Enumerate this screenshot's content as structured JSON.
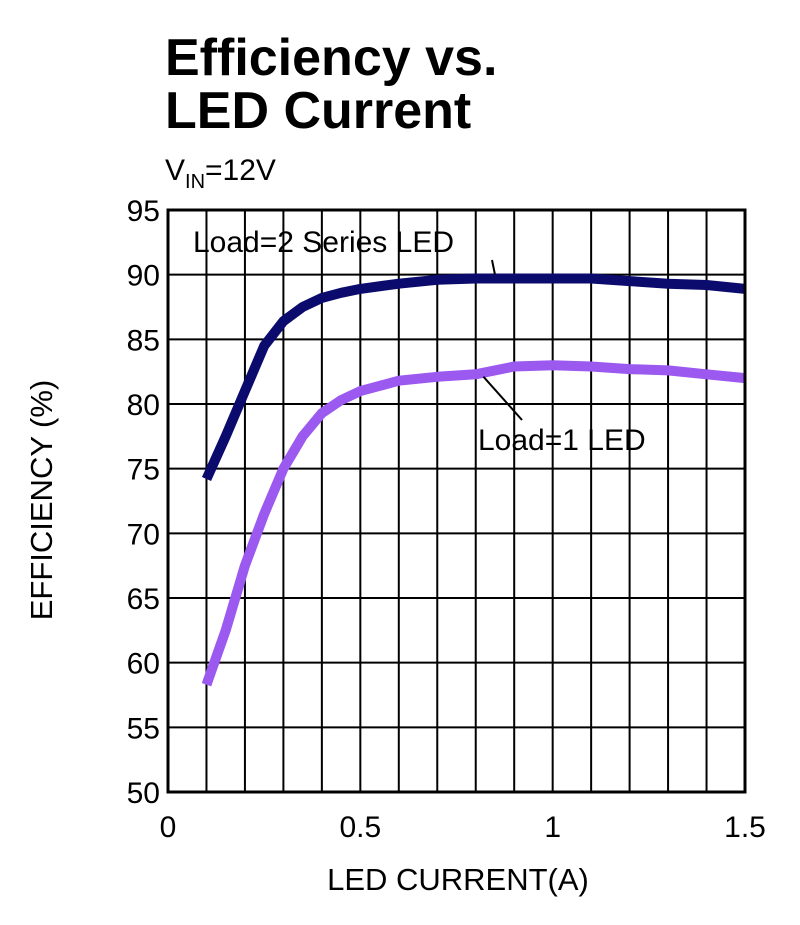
{
  "chart_data": {
    "type": "line",
    "title_lines": [
      "Efficiency vs.",
      "LED Current"
    ],
    "condition": {
      "prefix": "V",
      "subscript": "IN",
      "suffix": "=12V"
    },
    "xlabel": "LED CURRENT(A)",
    "ylabel": "EFFICIENCY (%)",
    "xlim": [
      0,
      1.5
    ],
    "ylim": [
      50,
      95
    ],
    "x_ticks": [
      0,
      0.5,
      1,
      1.5
    ],
    "x_tick_labels": [
      "0",
      "0.5",
      "1",
      "1.5"
    ],
    "y_ticks": [
      50,
      55,
      60,
      65,
      70,
      75,
      80,
      85,
      90,
      95
    ],
    "y_tick_labels": [
      "50",
      "55",
      "60",
      "65",
      "70",
      "75",
      "80",
      "85",
      "90",
      "95"
    ],
    "grid": true,
    "series": [
      {
        "name": "Load=2 Series LED",
        "color": "#0b0b6e",
        "x": [
          0.1,
          0.15,
          0.2,
          0.25,
          0.3,
          0.35,
          0.4,
          0.45,
          0.5,
          0.6,
          0.7,
          0.8,
          0.9,
          1.0,
          1.1,
          1.2,
          1.3,
          1.4,
          1.5
        ],
        "y": [
          74.2,
          77.5,
          81.0,
          84.5,
          86.4,
          87.5,
          88.2,
          88.6,
          88.9,
          89.3,
          89.6,
          89.7,
          89.7,
          89.7,
          89.7,
          89.5,
          89.3,
          89.2,
          88.9
        ]
      },
      {
        "name": "Load=1 LED",
        "color": "#9c59f0",
        "x": [
          0.1,
          0.15,
          0.2,
          0.25,
          0.3,
          0.35,
          0.4,
          0.45,
          0.5,
          0.6,
          0.7,
          0.8,
          0.9,
          1.0,
          1.1,
          1.2,
          1.3,
          1.4,
          1.5
        ],
        "y": [
          58.3,
          62.5,
          67.5,
          71.5,
          75.0,
          77.5,
          79.3,
          80.3,
          81.0,
          81.8,
          82.1,
          82.3,
          82.9,
          83.0,
          82.9,
          82.7,
          82.6,
          82.3,
          82.0
        ]
      }
    ],
    "annotations": [
      {
        "text": "Load=2 Series LED",
        "series": 0
      },
      {
        "text": "Load=1 LED",
        "series": 1
      }
    ]
  }
}
